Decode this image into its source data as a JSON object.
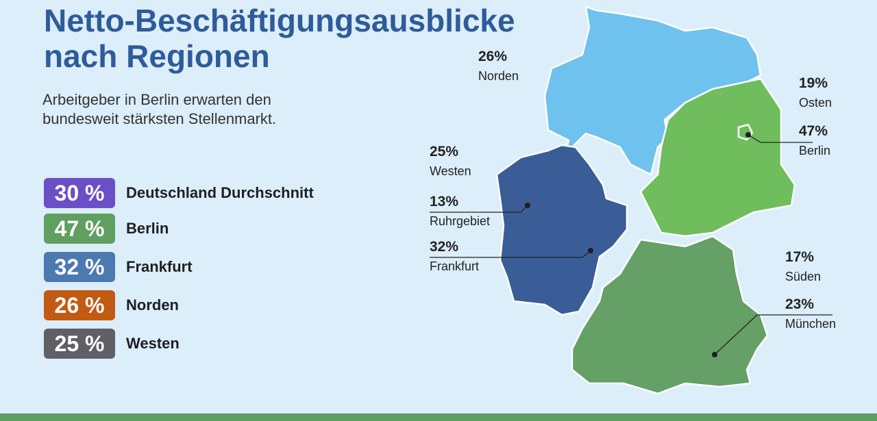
{
  "header": {
    "title": "Netto-Beschäftigungsausblicke nach Regionen",
    "subtitle": "Arbeitgeber in Berlin erwarten den bundesweit stärksten Stellenmarkt."
  },
  "legend": [
    {
      "badge": "30 %",
      "label": "Deutschland Durchschnitt"
    },
    {
      "badge": "47 %",
      "label": "Berlin"
    },
    {
      "badge": "32 %",
      "label": "Frankfurt"
    },
    {
      "badge": "26 %",
      "label": "Norden"
    },
    {
      "badge": "25 %",
      "label": "Westen"
    }
  ],
  "map_labels": [
    {
      "value": "26%",
      "label": "Norden"
    },
    {
      "value": "19%",
      "label": "Osten"
    },
    {
      "value": "47%",
      "label": "Berlin"
    },
    {
      "value": "25%",
      "label": "Westen"
    },
    {
      "value": "13%",
      "label": "Ruhrgebiet"
    },
    {
      "value": "32%",
      "label": "Frankfurt"
    },
    {
      "value": "17%",
      "label": "Süden"
    },
    {
      "value": "23%",
      "label": "München"
    }
  ]
}
